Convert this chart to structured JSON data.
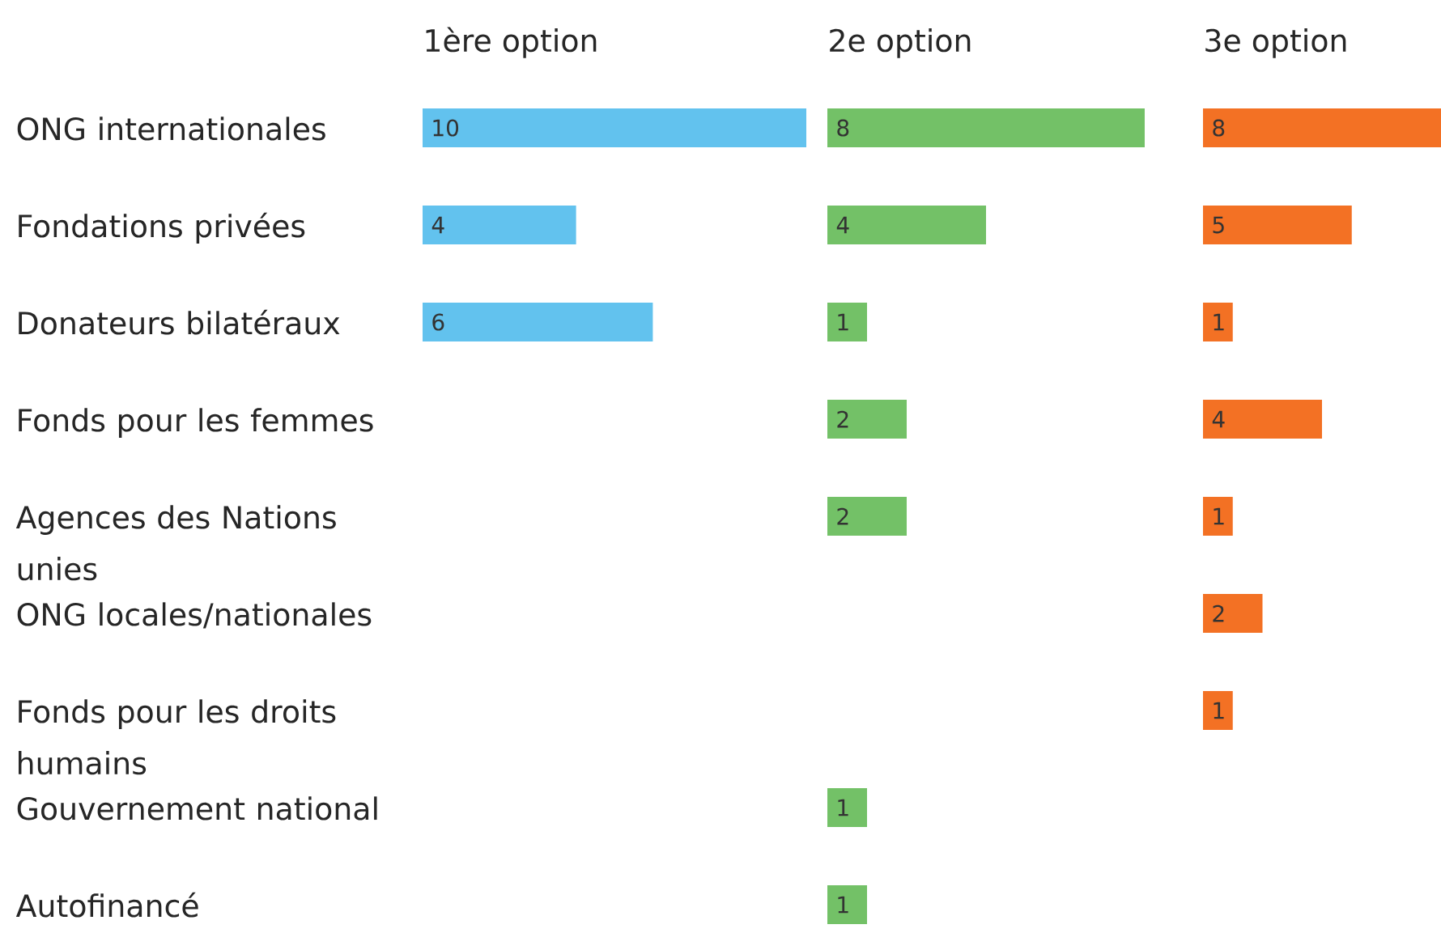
{
  "chart_data": [
    {
      "type": "bar",
      "orientation": "horizontal",
      "title": "1ère option",
      "categories": [
        "ONG internationales",
        "Fondations privées",
        "Donateurs bilatéraux",
        "Fonds pour les femmes",
        "Agences des Nations unies",
        "ONG locales/nationales",
        "Fonds pour les droits humains",
        "Gouvernement national",
        "Autofinancé"
      ],
      "values": [
        10,
        4,
        6,
        null,
        null,
        null,
        null,
        null,
        null
      ],
      "color": "#62c2ee",
      "data_labels": true,
      "tick_labels": "y"
    },
    {
      "type": "bar",
      "orientation": "horizontal",
      "title": "2e option",
      "categories": [
        null,
        null,
        null,
        null,
        null,
        null,
        null,
        null,
        null
      ],
      "values": [
        8,
        4,
        1,
        2,
        2,
        null,
        null,
        1,
        1
      ],
      "color": "#73c167",
      "data_labels": true
    },
    {
      "type": "bar",
      "orientation": "horizontal",
      "title": "3e option",
      "categories": [
        null,
        null,
        null,
        null,
        null,
        null,
        null,
        null,
        null
      ],
      "values": [
        8,
        5,
        1,
        4,
        1,
        2,
        1,
        null,
        null
      ],
      "color": "#f37124",
      "data_labels": true
    }
  ]
}
